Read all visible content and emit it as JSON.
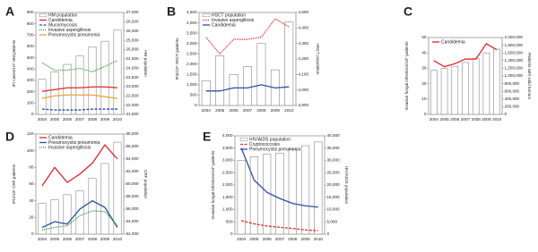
{
  "chart_data": [
    {
      "type": "combo",
      "label": "A",
      "y_label": "IFI cases/10⁵ HM patients",
      "y2_label": "HM population",
      "categories": [
        "2004",
        "2005",
        "2006",
        "2007",
        "2008",
        "2009",
        "2010"
      ],
      "ylim": [
        0,
        900
      ],
      "yticks": [
        0,
        100,
        200,
        300,
        400,
        500,
        600,
        700,
        800,
        900
      ],
      "y2lim": [
        21500,
        27000
      ],
      "y2ticks": [
        {
          "value": 21500,
          "label": "21,500"
        },
        {
          "value": 22000,
          "label": "22,000"
        },
        {
          "value": 22500,
          "label": "22,500"
        },
        {
          "value": 23000,
          "label": "23,000"
        },
        {
          "value": 23500,
          "label": "23,500"
        },
        {
          "value": 24000,
          "label": "24,000"
        },
        {
          "value": 24500,
          "label": "24,500"
        },
        {
          "value": 25000,
          "label": "25,000"
        },
        {
          "value": 25500,
          "label": "25,500"
        },
        {
          "value": 26000,
          "label": "26,000"
        },
        {
          "value": 26500,
          "label": "26,500"
        },
        {
          "value": 27000,
          "label": "27,000"
        }
      ],
      "series": [
        {
          "name": "HM population",
          "kind": "bar",
          "axis": "y2",
          "color": "#888888",
          "values": [
            23400,
            23800,
            24200,
            24650,
            25150,
            25450,
            26050
          ]
        },
        {
          "name": "Candidemia",
          "kind": "line",
          "dash": "solid",
          "color": "#e3272b",
          "values": [
            203,
            219,
            235,
            235,
            243,
            243,
            235
          ]
        },
        {
          "name": "Mucormycosis",
          "kind": "line",
          "dash": "dashed",
          "color": "#2e4fa3",
          "values": [
            47,
            39,
            39,
            39,
            47,
            47,
            47
          ]
        },
        {
          "name": "Invasive aspergillosis",
          "kind": "line",
          "dash": "dotted",
          "color": "#2f9a3a",
          "values": [
            454,
            391,
            391,
            407,
            376,
            423,
            477
          ]
        },
        {
          "name": "Pneumocystis pneumonia",
          "kind": "line",
          "dash": "solid",
          "color": "#e8a33a",
          "values": [
            141,
            164,
            172,
            172,
            172,
            156,
            141
          ]
        }
      ]
    },
    {
      "type": "combo",
      "label": "B",
      "y_label": "IFIs/10⁵ HSCT patients",
      "y2_label": "HSCT population",
      "categories": [
        "2004",
        "2005",
        "2006",
        "2007",
        "2008",
        "2009",
        "2010"
      ],
      "ylim": [
        0,
        4500
      ],
      "yticks": [
        0,
        500,
        {
          "value": 1000,
          "label": "1,000"
        },
        {
          "value": 1500,
          "label": "1,500"
        },
        {
          "value": 2000,
          "label": "2,000"
        },
        {
          "value": 2500,
          "label": "2,500"
        },
        {
          "value": 3000,
          "label": "3,000"
        },
        {
          "value": 3500,
          "label": "3,500"
        },
        {
          "value": 4000,
          "label": "4,000"
        },
        {
          "value": 4500,
          "label": "4,500"
        }
      ],
      "y2lim": [
        3900,
        4500
      ],
      "y2ticks": [
        {
          "value": 3900,
          "label": "3,900"
        },
        {
          "value": 4000,
          "label": "4,000"
        },
        {
          "value": 4100,
          "label": "4,100"
        },
        {
          "value": 4200,
          "label": "4,200"
        },
        {
          "value": 4300,
          "label": "4,300"
        },
        {
          "value": 4400,
          "label": "4,400"
        },
        {
          "value": 4500,
          "label": "4,500"
        }
      ],
      "series": [
        {
          "name": "HSCT population",
          "kind": "bar",
          "axis": "y2",
          "color": "#888888",
          "values": [
            4060,
            4220,
            4100,
            4150,
            4300,
            4130,
            4440
          ]
        },
        {
          "name": "Invasive aspergillosis",
          "kind": "line",
          "dash": "dotted",
          "color": "#e3272b",
          "values": [
            3300,
            2500,
            3200,
            3200,
            3300,
            4200,
            3800
          ]
        },
        {
          "name": "Candidemia",
          "kind": "line",
          "dash": "solid",
          "color": "#2e4fa3",
          "values": [
            700,
            700,
            850,
            850,
            1000,
            850,
            900
          ]
        }
      ]
    },
    {
      "type": "combo",
      "label": "C",
      "y_label": "Invasive fungal infections/10⁵ patients",
      "y2_label": "Patients with solid tumors",
      "categories": [
        "2004",
        "2005",
        "2006",
        "2007",
        "2008",
        "2009",
        "2010"
      ],
      "ylim": [
        0,
        50
      ],
      "yticks": [
        0,
        10,
        20,
        30,
        40,
        50
      ],
      "y2lim": [
        0,
        2000000
      ],
      "y2ticks": [
        0,
        {
          "value": 200000,
          "label": "200,000"
        },
        {
          "value": 400000,
          "label": "400,000"
        },
        {
          "value": 600000,
          "label": "600,000"
        },
        {
          "value": 800000,
          "label": "800,000"
        },
        {
          "value": 1000000,
          "label": "1,000,000"
        },
        {
          "value": 1200000,
          "label": "1,200,000"
        },
        {
          "value": 1400000,
          "label": "1,400,000"
        },
        {
          "value": 1600000,
          "label": "1,600,000"
        },
        {
          "value": 1800000,
          "label": "1,800,000"
        },
        {
          "value": 2000000,
          "label": "2,000,000"
        }
      ],
      "series": [
        {
          "name": "Candidemia",
          "kind": "line",
          "dash": "solid",
          "color": "#e3272b",
          "values": [
            35,
            31,
            33,
            36,
            36,
            46,
            42
          ]
        },
        {
          "kind": "bar",
          "axis": "y2",
          "color": "#888888",
          "values": [
            1150000,
            1200000,
            1250000,
            1350000,
            1450000,
            1600000,
            1700000
          ]
        }
      ]
    },
    {
      "type": "combo",
      "label": "D",
      "y_label": "IFIs/10⁵ CRF patients",
      "y2_label": "CRF population",
      "categories": [
        "2004",
        "2005",
        "2006",
        "2007",
        "2008",
        "2009",
        "2010"
      ],
      "ylim": [
        0,
        120
      ],
      "yticks": [
        0,
        20,
        40,
        60,
        80,
        100,
        120
      ],
      "y2lim": [
        52000,
        68000
      ],
      "y2ticks": [
        {
          "value": 52000,
          "label": "52,000"
        },
        {
          "value": 54000,
          "label": "54,000"
        },
        {
          "value": 56000,
          "label": "56,000"
        },
        {
          "value": 58000,
          "label": "58,000"
        },
        {
          "value": 60000,
          "label": "60,000"
        },
        {
          "value": 62000,
          "label": "62,000"
        },
        {
          "value": 64000,
          "label": "64,000"
        },
        {
          "value": 66000,
          "label": "66,000"
        },
        {
          "value": 68000,
          "label": "68,000"
        }
      ],
      "series": [
        {
          "name": "Candidemia",
          "kind": "line",
          "dash": "solid",
          "color": "#e3272b",
          "values": [
            58,
            80,
            62,
            72,
            85,
            107,
            90
          ]
        },
        {
          "name": "Pneumocystis pneumonia",
          "kind": "line",
          "dash": "solid",
          "color": "#2e4fa3",
          "values": [
            8,
            15,
            12,
            30,
            40,
            32,
            8
          ]
        },
        {
          "name": "Invasive aspergillosis",
          "kind": "line",
          "dash": "dotted",
          "color": "#2f9a3a",
          "values": [
            5,
            8,
            10,
            22,
            28,
            27,
            10
          ]
        },
        {
          "kind": "bar",
          "axis": "y2",
          "color": "#888888",
          "values": [
            56900,
            57500,
            58300,
            58900,
            60900,
            63300,
            66700
          ]
        }
      ]
    },
    {
      "type": "combo",
      "label": "E",
      "y_label": "Invasive fungal infections/10⁵ patients",
      "y2_label": "HIV/AIDS population",
      "categories": [
        "2004",
        "2005",
        "2006",
        "2007",
        "2008",
        "2009",
        "2010"
      ],
      "ylim": [
        0,
        4000
      ],
      "yticks": [
        0,
        500,
        {
          "value": 1000,
          "label": "1,000"
        },
        {
          "value": 1500,
          "label": "1,500"
        },
        {
          "value": 2000,
          "label": "2,000"
        },
        {
          "value": 2500,
          "label": "2,500"
        },
        {
          "value": 3000,
          "label": "3,000"
        },
        {
          "value": 3500,
          "label": "3,500"
        },
        {
          "value": 4000,
          "label": "4,000"
        }
      ],
      "y2lim": [
        0,
        40000
      ],
      "y2ticks": [
        0,
        {
          "value": 5000,
          "label": "5,000"
        },
        {
          "value": 10000,
          "label": "10,000"
        },
        {
          "value": 15000,
          "label": "15,000"
        },
        {
          "value": 20000,
          "label": "20,000"
        },
        {
          "value": 25000,
          "label": "25,000"
        },
        {
          "value": 30000,
          "label": "30,000"
        },
        {
          "value": 35000,
          "label": "35,000"
        },
        {
          "value": 40000,
          "label": "40,000"
        }
      ],
      "series": [
        {
          "name": "HIV/AIDS population",
          "kind": "bar",
          "axis": "y2",
          "color": "#888888",
          "values": [
            30000,
            31500,
            32500,
            33000,
            34500,
            36000,
            37500
          ]
        },
        {
          "name": "Cryptococcosis",
          "kind": "line",
          "dash": "dashed",
          "color": "#e3272b",
          "values": [
            550,
            420,
            330,
            280,
            230,
            170,
            140
          ]
        },
        {
          "name": "Pneumocystis pneumonia",
          "kind": "line",
          "dash": "solid",
          "color": "#2e4fa3",
          "values": [
            3500,
            2200,
            1700,
            1450,
            1250,
            1150,
            1100
          ]
        }
      ]
    }
  ]
}
